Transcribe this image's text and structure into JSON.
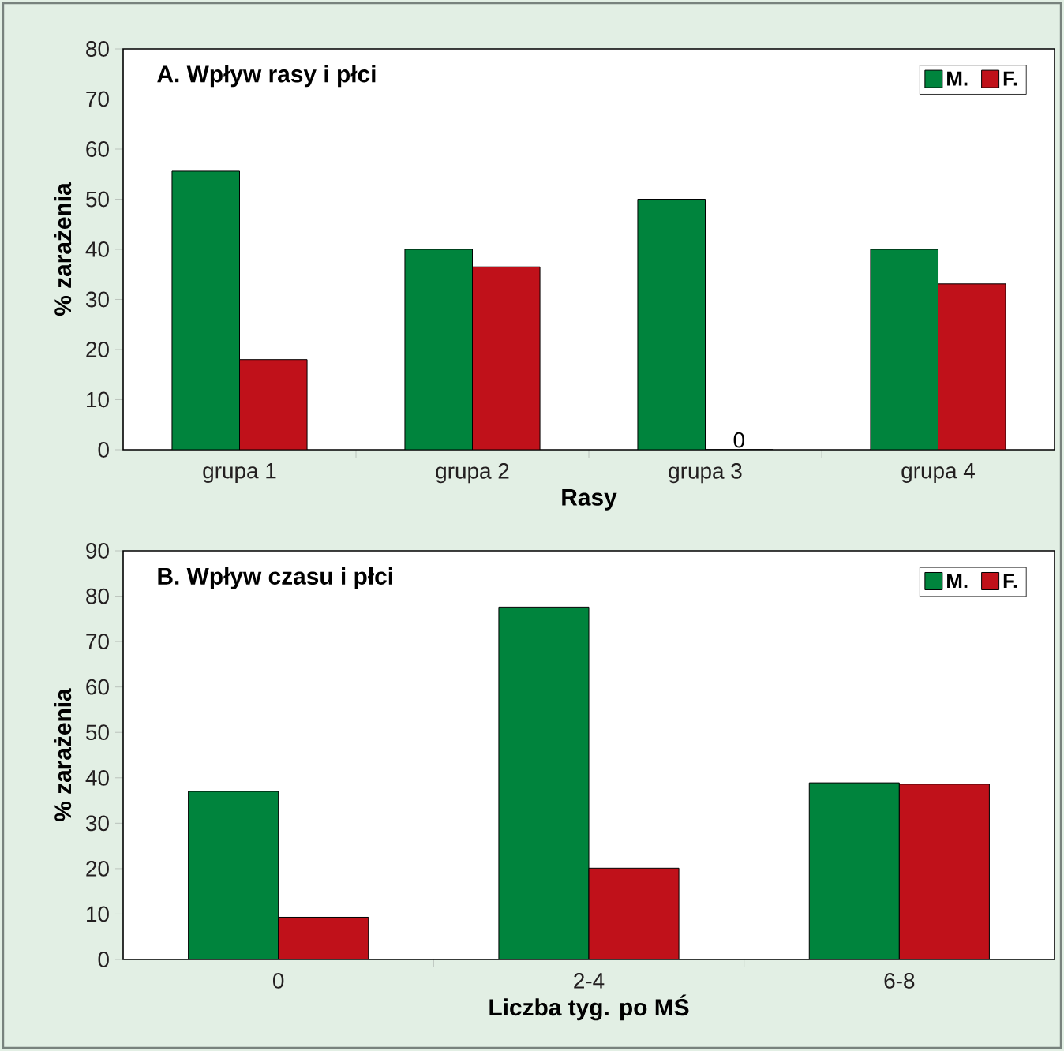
{
  "chart_data": [
    {
      "type": "bar",
      "title": "A. Wpływ rasy i płci",
      "xlabel": "Rasy",
      "ylabel": "% zarażenia",
      "categories": [
        "grupa 1",
        "grupa 2",
        "grupa 3",
        "grupa 4"
      ],
      "series": [
        {
          "name": "M.",
          "color": "#00843d",
          "values": [
            55.6,
            40,
            50,
            40
          ]
        },
        {
          "name": "F.",
          "color": "#c0111a",
          "values": [
            18,
            36.5,
            0,
            33.1
          ],
          "value_labels": [
            null,
            null,
            "0",
            null
          ]
        }
      ],
      "ylim": [
        0,
        80
      ],
      "yticks": [
        0,
        10,
        20,
        30,
        40,
        50,
        60,
        70,
        80
      ],
      "legend": "top right"
    },
    {
      "type": "bar",
      "title": "B. Wpływ czasu i płci",
      "xlabel": "Liczba tyg. po MŚ",
      "ylabel": "% zarażenia",
      "categories": [
        "0",
        "2-4",
        "6-8"
      ],
      "series": [
        {
          "name": "M.",
          "color": "#00843d",
          "values": [
            37,
            77.6,
            38.9
          ]
        },
        {
          "name": "F.",
          "color": "#c0111a",
          "values": [
            9.3,
            20.1,
            38.6
          ]
        }
      ],
      "ylim": [
        0,
        90
      ],
      "yticks": [
        0,
        10,
        20,
        30,
        40,
        50,
        60,
        70,
        80,
        90
      ],
      "legend": "top right"
    }
  ]
}
